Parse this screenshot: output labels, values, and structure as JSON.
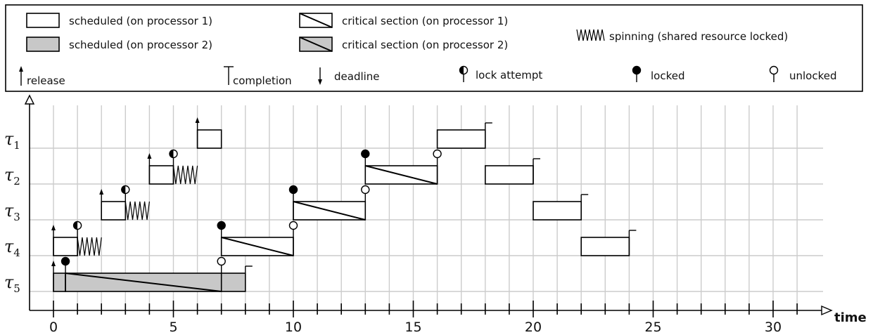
{
  "legend": {
    "scheduled_p1": "scheduled (on processor 1)",
    "scheduled_p2": "scheduled (on processor 2)",
    "critical_p1": "critical section (on processor 1)",
    "critical_p2": "critical section (on processor 2)",
    "spinning": "spinning (shared resource locked)",
    "release": "release",
    "completion": "completion",
    "deadline": "deadline",
    "lock_attempt": "lock attempt",
    "locked": "locked",
    "unlocked": "unlocked"
  },
  "axis": {
    "x_title": "time",
    "x_min": 0,
    "x_max": 31,
    "major_ticks": [
      0,
      5,
      10,
      15,
      20,
      25,
      30
    ],
    "tick_labels": [
      "0",
      "5",
      "10",
      "15",
      "20",
      "25",
      "30"
    ]
  },
  "colors": {
    "processor1_fill": "#ffffff",
    "processor2_fill": "#c8c8c8",
    "grid": "#cccccc",
    "ink": "#000000"
  },
  "tasks": [
    {
      "id": "t1",
      "label": "τ",
      "sub": "1"
    },
    {
      "id": "t2",
      "label": "τ",
      "sub": "2"
    },
    {
      "id": "t3",
      "label": "τ",
      "sub": "3"
    },
    {
      "id": "t4",
      "label": "τ",
      "sub": "4"
    },
    {
      "id": "t5",
      "label": "τ",
      "sub": "5"
    }
  ],
  "schedule": {
    "t1": {
      "releases": [
        6
      ],
      "completions": [
        18
      ],
      "segments": [
        {
          "start": 6,
          "end": 7,
          "proc": 1
        },
        {
          "start": 16,
          "end": 18,
          "proc": 1
        }
      ],
      "critical": [],
      "spinning": [],
      "lock_attempts": [],
      "locked": [],
      "unlocked": []
    },
    "t2": {
      "releases": [
        4
      ],
      "completions": [
        20
      ],
      "segments": [
        {
          "start": 4,
          "end": 5,
          "proc": 1
        },
        {
          "start": 18,
          "end": 20,
          "proc": 1
        }
      ],
      "critical": [
        {
          "start": 13,
          "end": 16,
          "proc": 1
        }
      ],
      "spinning": [
        {
          "start": 5,
          "end": 6
        }
      ],
      "lock_attempts": [
        5
      ],
      "locked": [
        13
      ],
      "unlocked": [
        16
      ]
    },
    "t3": {
      "releases": [
        2
      ],
      "completions": [
        22
      ],
      "segments": [
        {
          "start": 2,
          "end": 3,
          "proc": 1
        },
        {
          "start": 20,
          "end": 22,
          "proc": 1
        }
      ],
      "critical": [
        {
          "start": 10,
          "end": 13,
          "proc": 1
        }
      ],
      "spinning": [
        {
          "start": 3,
          "end": 4
        }
      ],
      "lock_attempts": [
        3
      ],
      "locked": [
        10
      ],
      "unlocked": [
        13
      ]
    },
    "t4": {
      "releases": [
        0
      ],
      "completions": [
        24
      ],
      "segments": [
        {
          "start": 0,
          "end": 1,
          "proc": 1
        },
        {
          "start": 22,
          "end": 24,
          "proc": 1
        }
      ],
      "critical": [
        {
          "start": 7,
          "end": 10,
          "proc": 1
        }
      ],
      "spinning": [
        {
          "start": 1,
          "end": 2
        }
      ],
      "lock_attempts": [
        1
      ],
      "locked": [
        7
      ],
      "unlocked": [
        10
      ]
    },
    "t5": {
      "releases": [
        0
      ],
      "completions": [
        8
      ],
      "segments": [
        {
          "start": 0,
          "end": 0.5,
          "proc": 2
        },
        {
          "start": 7,
          "end": 8,
          "proc": 2
        }
      ],
      "critical": [
        {
          "start": 0.5,
          "end": 7,
          "proc": 2
        }
      ],
      "spinning": [],
      "lock_attempts": [],
      "locked": [
        0.5
      ],
      "unlocked": [
        7
      ]
    }
  }
}
